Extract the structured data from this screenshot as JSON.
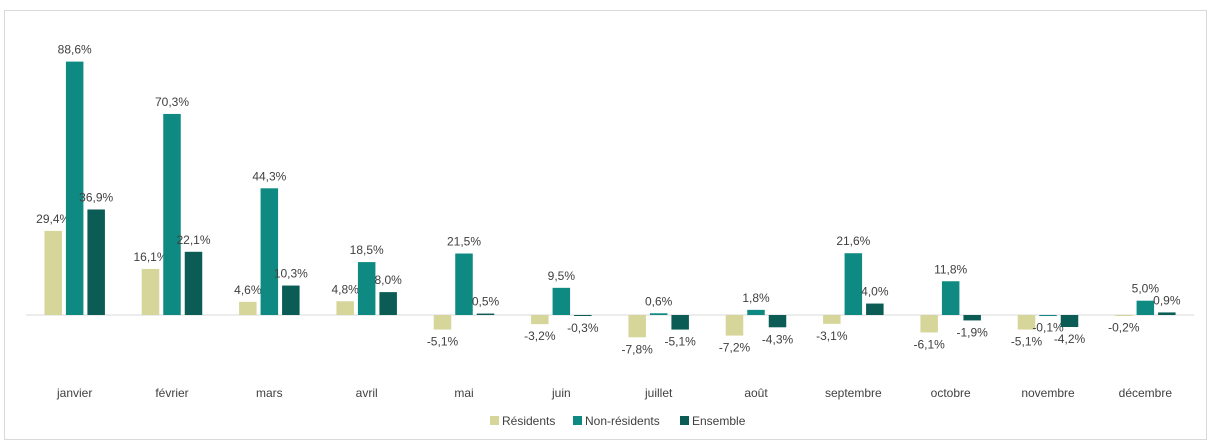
{
  "chart_data": {
    "type": "bar",
    "categories": [
      "janvier",
      "février",
      "mars",
      "avril",
      "mai",
      "juin",
      "juillet",
      "août",
      "septembre",
      "octobre",
      "novembre",
      "décembre"
    ],
    "series": [
      {
        "name": "Résidents",
        "color": "#d6d69a",
        "values": [
          29.4,
          16.1,
          4.6,
          4.8,
          -5.1,
          -3.2,
          -7.8,
          -7.2,
          -3.1,
          -6.1,
          -5.1,
          -0.2
        ],
        "labels": [
          "29,4%",
          "16,1%",
          "4,6%",
          "4,8%",
          "-5,1%",
          "-3,2%",
          "-7,8%",
          "-7,2%",
          "-3,1%",
          "-6,1%",
          "-5,1%",
          "-0,2%"
        ]
      },
      {
        "name": "Non-résidents",
        "color": "#0e8a83",
        "values": [
          88.6,
          70.3,
          44.3,
          18.5,
          21.5,
          9.5,
          0.6,
          1.8,
          21.6,
          11.8,
          -0.1,
          5.0
        ],
        "labels": [
          "88,6%",
          "70,3%",
          "44,3%",
          "18,5%",
          "21,5%",
          "9,5%",
          "0,6%",
          "1,8%",
          "21,6%",
          "11,8%",
          "-0,1%",
          "5,0%"
        ]
      },
      {
        "name": "Ensemble",
        "color": "#0b5c55",
        "values": [
          36.9,
          22.1,
          10.3,
          8.0,
          0.5,
          -0.3,
          -5.1,
          -4.3,
          4.0,
          -1.9,
          -4.2,
          0.9
        ],
        "labels": [
          "36,9%",
          "22,1%",
          "10,3%",
          "8,0%",
          "0,5%",
          "-0,3%",
          "-5,1%",
          "-4,3%",
          "4,0%",
          "-1,9%",
          "-4,2%",
          "0,9%"
        ]
      }
    ],
    "unit": "%",
    "grid": false,
    "legend_position": "bottom"
  }
}
